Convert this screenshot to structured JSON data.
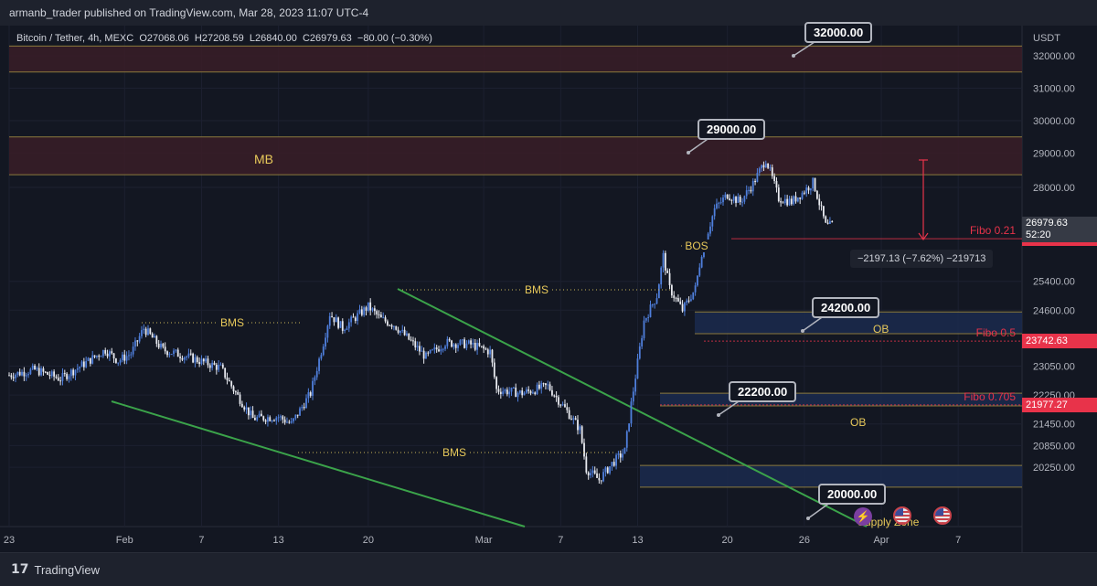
{
  "header": {
    "publisher_text": "armanb_trader published on TradingView.com, Mar 28, 2023 11:07 UTC-4"
  },
  "legend": {
    "symbol": "Bitcoin / Tether, 4h, MEXC",
    "open": "O27068.06",
    "high": "H27208.59",
    "low": "L26840.00",
    "close": "C26979.63",
    "change": "−80.00 (−0.30%)"
  },
  "footer": {
    "brand": "TradingView"
  },
  "chart_data": {
    "type": "candlestick",
    "currency_label": "USDT",
    "ylim": [
      19700,
      32600
    ],
    "y_ticks": [
      {
        "value": 32000,
        "label": "32000.00"
      },
      {
        "value": 31000,
        "label": "31000.00"
      },
      {
        "value": 30000,
        "label": "30000.00"
      },
      {
        "value": 29000,
        "label": "29000.00"
      },
      {
        "value": 28000,
        "label": "28000.00"
      },
      {
        "value": 25400,
        "label": "25400.00"
      },
      {
        "value": 24600,
        "label": "24600.00"
      },
      {
        "value": 23050,
        "label": "23050.00"
      },
      {
        "value": 22250,
        "label": "22250.00"
      },
      {
        "value": 21450,
        "label": "21450.00"
      },
      {
        "value": 20850,
        "label": "20850.00"
      },
      {
        "value": 20250,
        "label": "20250.00"
      }
    ],
    "x_ticks": [
      {
        "day": 0,
        "label": "23"
      },
      {
        "day": 9,
        "label": "Feb"
      },
      {
        "day": 15,
        "label": "7"
      },
      {
        "day": 21,
        "label": "13"
      },
      {
        "day": 28,
        "label": "20"
      },
      {
        "day": 37,
        "label": "Mar"
      },
      {
        "day": 43,
        "label": "7"
      },
      {
        "day": 49,
        "label": "13"
      },
      {
        "day": 56,
        "label": "20"
      },
      {
        "day": 62,
        "label": "26"
      },
      {
        "day": 68,
        "label": "Apr"
      },
      {
        "day": 74,
        "label": "7"
      }
    ],
    "price_path": [
      [
        0,
        22800
      ],
      [
        2,
        22950
      ],
      [
        4,
        22700
      ],
      [
        6,
        23150
      ],
      [
        7.5,
        23500
      ],
      [
        8.5,
        23200
      ],
      [
        9.5,
        23400
      ],
      [
        10.5,
        24100
      ],
      [
        12,
        23500
      ],
      [
        14,
        23300
      ],
      [
        16.5,
        23000
      ],
      [
        17.5,
        22400
      ],
      [
        19,
        21600
      ],
      [
        21,
        21650
      ],
      [
        22,
        21450
      ],
      [
        23.5,
        22300
      ],
      [
        24.5,
        23700
      ],
      [
        25,
        24500
      ],
      [
        26,
        24100
      ],
      [
        27,
        24400
      ],
      [
        28,
        24700
      ],
      [
        29,
        24350
      ],
      [
        30,
        24200
      ],
      [
        31,
        23850
      ],
      [
        32.5,
        23300
      ],
      [
        34,
        23700
      ],
      [
        36,
        23650
      ],
      [
        37.5,
        23450
      ],
      [
        38,
        22400
      ],
      [
        40,
        22300
      ],
      [
        42,
        22500
      ],
      [
        43.5,
        21800
      ],
      [
        44.5,
        21300
      ],
      [
        45,
        20200
      ],
      [
        46,
        19900
      ],
      [
        47,
        20350
      ],
      [
        48,
        20700
      ],
      [
        48.5,
        22000
      ],
      [
        49.5,
        24300
      ],
      [
        50.5,
        25000
      ],
      [
        51,
        26100
      ],
      [
        51.5,
        25200
      ],
      [
        52.5,
        24600
      ],
      [
        53.5,
        25200
      ],
      [
        54,
        26200
      ],
      [
        55,
        27400
      ],
      [
        56,
        27800
      ],
      [
        57,
        27600
      ],
      [
        58,
        28100
      ],
      [
        59,
        28800
      ],
      [
        60,
        27700
      ],
      [
        61,
        27600
      ],
      [
        62,
        27900
      ],
      [
        62.7,
        28150
      ],
      [
        63.7,
        26900
      ],
      [
        64.3,
        26980
      ]
    ],
    "last_price": {
      "value": 26979.63,
      "label": "26979.63",
      "countdown": "52:20"
    },
    "levels": [
      {
        "value": 26580,
        "label": "26580.00",
        "text": "Fibo 0.21"
      },
      {
        "value": 23742.63,
        "label": "23742.63",
        "text": "Fibo 0.5"
      },
      {
        "value": 21977.27,
        "label": "21977.27",
        "text": "Fibo 0.705"
      }
    ],
    "zones": [
      {
        "from": 31500,
        "to": 32300,
        "color": "#3a1d27",
        "label": ""
      },
      {
        "from": 28350,
        "to": 29500,
        "color": "#3a1d27",
        "label": "MB"
      },
      {
        "from": 23950,
        "to": 24550,
        "color": "#1b2a4e",
        "label": "OB"
      },
      {
        "from": 21950,
        "to": 22300,
        "color": "#1b2a4e",
        "label": "OB"
      },
      {
        "from": 19700,
        "to": 20300,
        "color": "#1b2a4e",
        "label": "Supply Zone"
      }
    ],
    "callouts": [
      "32000.00",
      "29000.00",
      "24200.00",
      "22200.00",
      "20000.00"
    ],
    "structure_labels": [
      "BMS",
      "BMS",
      "BMS",
      "BOS"
    ],
    "measure_text": "−2197.13 (−7.62%) −219713",
    "trendlines": "2"
  }
}
